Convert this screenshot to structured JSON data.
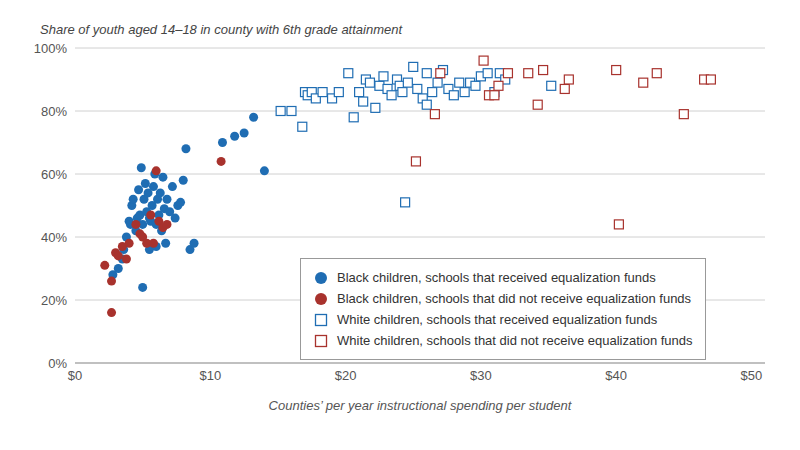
{
  "chart_data": {
    "type": "scatter",
    "y_label": "Share of youth aged 14–18 in county with 6th grade attainment",
    "x_label": "Counties’ per year instructional spending per student",
    "xlim": [
      0,
      51
    ],
    "ylim": [
      0,
      100
    ],
    "xticks": [
      {
        "value": 0,
        "label": "$0"
      },
      {
        "value": 10,
        "label": "$10"
      },
      {
        "value": 20,
        "label": "$20"
      },
      {
        "value": 30,
        "label": "$30"
      },
      {
        "value": 40,
        "label": "$40"
      },
      {
        "value": 50,
        "label": "$50"
      }
    ],
    "yticks": [
      {
        "value": 0,
        "label": "0%"
      },
      {
        "value": 20,
        "label": "20%"
      },
      {
        "value": 40,
        "label": "40%"
      },
      {
        "value": 60,
        "label": "60%"
      },
      {
        "value": 80,
        "label": "80%"
      },
      {
        "value": 100,
        "label": "100%"
      }
    ],
    "grid": true,
    "legend": "lower right",
    "series": [
      {
        "name": "Black children, schools that received equalization funds",
        "color": "#1f6db3",
        "marker": "circle",
        "x": [
          2.8,
          3.2,
          3.5,
          3.6,
          3.8,
          4.0,
          4.1,
          4.2,
          4.3,
          4.5,
          4.6,
          4.7,
          4.8,
          4.9,
          5.0,
          5.0,
          5.1,
          5.2,
          5.3,
          5.4,
          5.5,
          5.5,
          5.6,
          5.7,
          5.8,
          5.9,
          6.0,
          6.0,
          6.1,
          6.2,
          6.3,
          6.4,
          6.5,
          6.6,
          6.7,
          6.8,
          7.0,
          7.2,
          7.4,
          7.6,
          7.8,
          8.0,
          8.2,
          8.5,
          8.8,
          10.9,
          11.8,
          12.5,
          13.2,
          14.0
        ],
        "values": [
          28,
          30,
          33,
          36,
          40,
          45,
          44,
          50,
          52,
          42,
          46,
          55,
          47,
          62,
          24,
          44,
          52,
          57,
          48,
          54,
          36,
          46,
          45,
          50,
          56,
          60,
          37,
          44,
          52,
          47,
          54,
          42,
          59,
          49,
          38,
          52,
          48,
          56,
          46,
          50,
          51,
          58,
          68,
          36,
          38,
          70,
          72,
          73,
          78,
          61
        ]
      },
      {
        "name": "Black children, schools that did not receive equalization funds",
        "color": "#a8322d",
        "marker": "circle",
        "x": [
          2.2,
          2.7,
          2.7,
          3.0,
          3.2,
          3.5,
          3.8,
          4.0,
          4.5,
          4.8,
          5.0,
          5.3,
          5.6,
          5.8,
          6.0,
          6.2,
          6.5,
          6.8,
          10.8
        ],
        "values": [
          31,
          26,
          16,
          35,
          34,
          37,
          33,
          38,
          44,
          41,
          40,
          38,
          47,
          38,
          61,
          45,
          43,
          44,
          64
        ]
      },
      {
        "name": "White children, schools that received equalization funds",
        "color": "#1f6db3",
        "marker": "open_square",
        "x": [
          15.2,
          16.0,
          16.8,
          17.0,
          17.2,
          17.5,
          17.8,
          18.3,
          19.0,
          19.5,
          20.2,
          20.6,
          21.0,
          21.3,
          21.5,
          21.8,
          22.2,
          22.5,
          22.8,
          23.1,
          23.4,
          23.8,
          24.0,
          24.2,
          24.4,
          24.6,
          25.0,
          25.3,
          25.7,
          26.0,
          26.0,
          26.4,
          26.8,
          27.2,
          27.6,
          28.0,
          28.4,
          28.8,
          29.2,
          29.6,
          30.0,
          30.5,
          31.0,
          31.4,
          31.8,
          35.2
        ],
        "values": [
          80,
          80,
          75,
          86,
          85,
          86,
          84,
          86,
          84,
          86,
          92,
          78,
          86,
          83,
          90,
          89,
          81,
          88,
          91,
          87,
          85,
          90,
          88,
          86,
          51,
          89,
          94,
          87,
          84,
          92,
          82,
          86,
          89,
          93,
          87,
          85,
          89,
          86,
          89,
          88,
          91,
          92,
          86,
          92,
          90,
          88
        ]
      },
      {
        "name": "White children, schools that did not receive equalization funds",
        "color": "#a8322d",
        "marker": "open_square",
        "x": [
          25.2,
          26.6,
          27.0,
          30.2,
          30.6,
          31.0,
          31.3,
          32.0,
          33.5,
          34.2,
          34.6,
          36.2,
          36.5,
          40.0,
          40.2,
          42.0,
          43.0,
          45.0,
          46.5,
          47.0
        ],
        "values": [
          64,
          79,
          92,
          96,
          85,
          85,
          88,
          92,
          92,
          82,
          93,
          87,
          90,
          93,
          44,
          89,
          92,
          79,
          90,
          90
        ]
      }
    ]
  }
}
